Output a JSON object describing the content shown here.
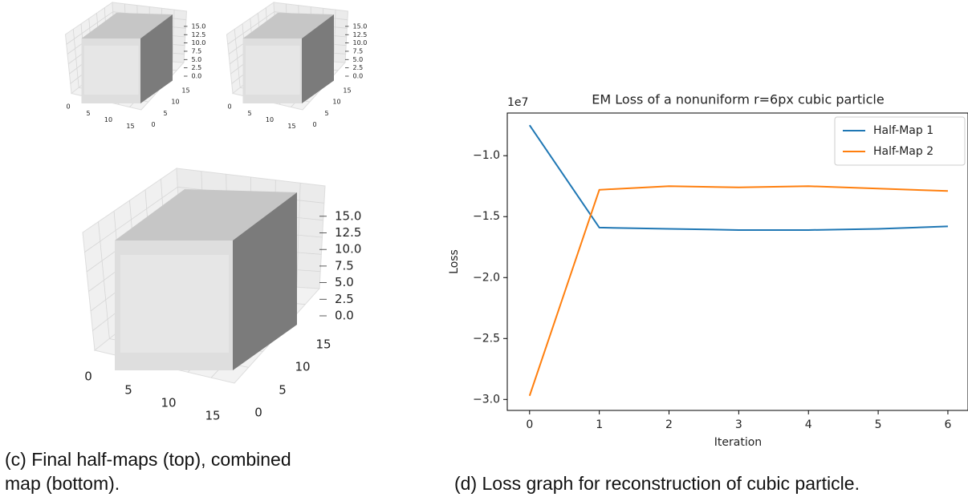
{
  "left_panel": {
    "caption": "(c) Final half-maps (top), combined map (bottom).",
    "plots": [
      {
        "xticks": [
          "0",
          "5",
          "10",
          "15"
        ],
        "yticks": [
          "0",
          "5",
          "10",
          "15"
        ],
        "zticks": [
          "0.0",
          "2.5",
          "5.0",
          "7.5",
          "10.0",
          "12.5",
          "15.0"
        ]
      },
      {
        "xticks": [
          "0",
          "5",
          "10",
          "15"
        ],
        "yticks": [
          "0",
          "5",
          "10",
          "15"
        ],
        "zticks": [
          "0.0",
          "2.5",
          "5.0",
          "7.5",
          "10.0",
          "12.5",
          "15.0"
        ]
      },
      {
        "xticks": [
          "0",
          "5",
          "10",
          "15"
        ],
        "yticks": [
          "0",
          "5",
          "10",
          "15"
        ],
        "zticks": [
          "0.0",
          "2.5",
          "5.0",
          "7.5",
          "10.0",
          "12.5",
          "15.0"
        ]
      }
    ]
  },
  "chart_data": {
    "type": "line",
    "title": "EM Loss of a nonuniform r=6px cubic particle",
    "x_label": "Iteration",
    "y_label": "Loss",
    "y_offset_label": "1e7",
    "x": [
      0,
      1,
      2,
      3,
      4,
      5,
      6
    ],
    "series": [
      {
        "name": "Half-Map 1",
        "color": "#1f77b4",
        "values": [
          -0.75,
          -1.59,
          -1.6,
          -1.61,
          -1.61,
          -1.6,
          -1.58
        ]
      },
      {
        "name": "Half-Map 2",
        "color": "#ff7f0e",
        "values": [
          -2.97,
          -1.28,
          -1.25,
          -1.26,
          -1.25,
          -1.27,
          -1.29
        ]
      }
    ],
    "xlim": [
      -0.32,
      6.3
    ],
    "ylim": [
      -3.09,
      -0.65
    ],
    "xticks": [
      0,
      1,
      2,
      3,
      4,
      5,
      6
    ],
    "yticks": [
      {
        "value": -1.0,
        "label": "−1.0"
      },
      {
        "value": -1.5,
        "label": "−1.5"
      },
      {
        "value": -2.0,
        "label": "−2.0"
      },
      {
        "value": -2.5,
        "label": "−2.5"
      },
      {
        "value": -3.0,
        "label": "−3.0"
      }
    ],
    "legend": "upper right"
  },
  "right_caption": "(d) Loss graph for reconstruction of cubic particle."
}
